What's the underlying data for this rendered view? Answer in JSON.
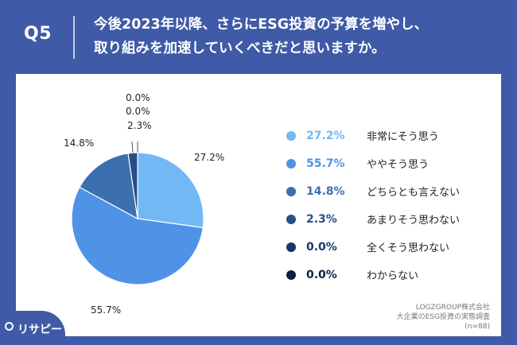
{
  "header": {
    "q_label": "Q5",
    "question_line1": "今後2023年以降、さらにESG投資の予算を増やし、",
    "question_line2": "取り組みを加速していくべきだと思いますか。"
  },
  "colors": {
    "frame": "#3f5aa6",
    "slice_colors": [
      "#72b8f5",
      "#4f93e6",
      "#3c6fae",
      "#264f88",
      "#1b356b",
      "#0f1f44"
    ]
  },
  "chart_data": {
    "type": "pie",
    "start_angle_deg": 0,
    "direction": "clockwise",
    "slices": [
      {
        "label": "非常にそう思う",
        "value": 27.2,
        "display": "27.2%"
      },
      {
        "label": "ややそう思う",
        "value": 55.7,
        "display": "55.7%"
      },
      {
        "label": "どちらとも言えない",
        "value": 14.8,
        "display": "14.8%"
      },
      {
        "label": "あまりそう思わない",
        "value": 2.3,
        "display": "2.3%"
      },
      {
        "label": "全くそう思わない",
        "value": 0.0,
        "display": "0.0%"
      },
      {
        "label": "わからない",
        "value": 0.0,
        "display": "0.0%"
      }
    ],
    "legend_position": "right"
  },
  "source": {
    "line1": "LOGZGROUP株式会社",
    "line2": "大企業のESG投資の実態調査",
    "line3": "(n=88)"
  },
  "logo": {
    "text": "リサピー",
    "icon": "search-icon"
  }
}
